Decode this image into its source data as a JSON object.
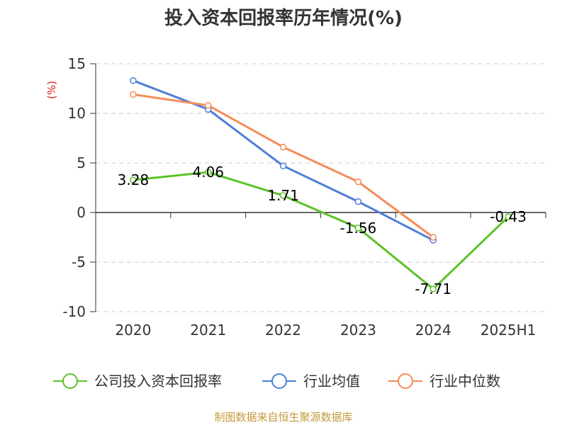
{
  "chart_data": {
    "type": "line",
    "title": "投入资本回报率历年情况(%)",
    "ylabel": "(%)",
    "xlabel": "",
    "categories": [
      "2020",
      "2021",
      "2022",
      "2023",
      "2024",
      "2025H1"
    ],
    "ylim": [
      -10,
      15
    ],
    "yticks": [
      "15",
      "10",
      "5",
      "0",
      "-5",
      "-10"
    ],
    "ytick_values": [
      15,
      10,
      5,
      0,
      -5,
      -10
    ],
    "grid": true,
    "legend_position": "bottom",
    "series": [
      {
        "name": "公司投入资本回报率",
        "color": "#5cc227",
        "values": [
          3.28,
          4.06,
          1.71,
          -1.56,
          -7.71,
          -0.43
        ],
        "labels": [
          "3.28",
          "4.06",
          "1.71",
          "-1.56",
          "-7.71",
          "-0.43"
        ]
      },
      {
        "name": "行业均值",
        "color": "#4e7ed8",
        "values": [
          13.3,
          10.4,
          4.7,
          1.1,
          -2.8,
          null
        ]
      },
      {
        "name": "行业中位数",
        "color": "#f58d57",
        "values": [
          11.9,
          10.8,
          6.6,
          3.1,
          -2.5,
          null
        ]
      }
    ],
    "source": "制图数据来自恒生聚源数据库"
  }
}
